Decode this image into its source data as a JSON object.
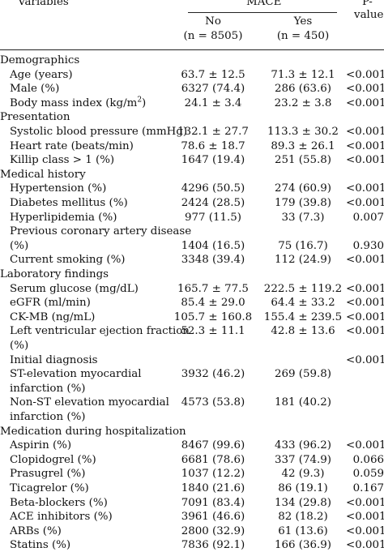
{
  "header": {
    "variables": "Variables",
    "mace": "MACE",
    "p_line1": "P-",
    "p_line2": "value",
    "no_label": "No",
    "no_n": "(n = 8505)",
    "yes_label": "Yes",
    "yes_n": "(n = 450)"
  },
  "rows": [
    {
      "label": "Demographics",
      "section": true
    },
    {
      "label": "Age (years)",
      "no": "63.7 ± 12.5",
      "yes": "71.3 ± 12.1",
      "p": "<0.001"
    },
    {
      "label": "Male (%)",
      "no": "6327 (74.4)",
      "yes": "286 (63.6)",
      "p": "<0.001"
    },
    {
      "label": "Body mass index (kg/m",
      "label_sup": "2",
      "label_tail": ")",
      "no": "24.1 ± 3.4",
      "yes": "23.2 ± 3.8",
      "p": "<0.001"
    },
    {
      "label": "Presentation",
      "section": true
    },
    {
      "label": "Systolic blood pressure (mmHg)",
      "no": "132.1 ± 27.7",
      "yes": "113.3 ± 30.2",
      "p": "<0.001"
    },
    {
      "label": "Heart rate (beats/min)",
      "no": "78.6 ± 18.7",
      "yes": "89.3 ± 26.1",
      "p": "<0.001"
    },
    {
      "label": "Killip class > 1 (%)",
      "no": "1647 (19.4)",
      "yes": "251 (55.8)",
      "p": "<0.001"
    },
    {
      "label": "Medical history",
      "section": true
    },
    {
      "label": "Hypertension (%)",
      "no": "4296 (50.5)",
      "yes": "274 (60.9)",
      "p": "<0.001"
    },
    {
      "label": "Diabetes mellitus (%)",
      "no": "2424 (28.5)",
      "yes": "179 (39.8)",
      "p": "<0.001"
    },
    {
      "label": "Hyperlipidemia (%)",
      "no": "977 (11.5)",
      "yes": "33 (7.3)",
      "p": "0.007"
    },
    {
      "label": "Previous coronary artery disease",
      "no": "",
      "yes": "",
      "p": ""
    },
    {
      "label": "(%)",
      "no": "1404 (16.5)",
      "yes": "75 (16.7)",
      "p": "0.930"
    },
    {
      "label": "Current smoking (%)",
      "no": "3348 (39.4)",
      "yes": "112 (24.9)",
      "p": "<0.001"
    },
    {
      "label": "Laboratory findings",
      "section": true
    },
    {
      "label": "Serum glucose (mg/dL)",
      "no": "165.7 ± 77.5",
      "yes": "222.5 ± 119.2",
      "p": "<0.001"
    },
    {
      "label": "eGFR (ml/min)",
      "no": "85.4 ± 29.0",
      "yes": "64.4 ± 33.2",
      "p": "<0.001"
    },
    {
      "label": "CK-MB (ng/mL)",
      "no": "105.7 ± 160.8",
      "yes": "155.4 ± 239.5",
      "p": "<0.001"
    },
    {
      "label": "Left ventricular ejection fraction",
      "no": "52.3 ± 11.1",
      "yes": "42.8 ± 13.6",
      "p": "<0.001"
    },
    {
      "label": "(%)",
      "no": "",
      "yes": "",
      "p": ""
    },
    {
      "label": "Initial diagnosis",
      "no": "",
      "yes": "",
      "p": "<0.001"
    },
    {
      "label": "ST-elevation myocardial",
      "no": "3932 (46.2)",
      "yes": "269 (59.8)",
      "p": ""
    },
    {
      "label": "infarction (%)",
      "no": "",
      "yes": "",
      "p": ""
    },
    {
      "label": "Non-ST elevation myocardial",
      "no": "4573 (53.8)",
      "yes": "181 (40.2)",
      "p": ""
    },
    {
      "label": "infarction (%)",
      "no": "",
      "yes": "",
      "p": ""
    },
    {
      "label": "Medication during hospitalization",
      "section": true
    },
    {
      "label": "Aspirin (%)",
      "no": "8467 (99.6)",
      "yes": "433 (96.2)",
      "p": "<0.001"
    },
    {
      "label": "Clopidogrel (%)",
      "no": "6681 (78.6)",
      "yes": "337 (74.9)",
      "p": "0.066"
    },
    {
      "label": "Prasugrel (%)",
      "no": "1037 (12.2)",
      "yes": "42 (9.3)",
      "p": "0.059"
    },
    {
      "label": "Ticagrelor (%)",
      "no": "1840 (21.6)",
      "yes": "86 (19.1)",
      "p": "0.167"
    },
    {
      "label": "Beta-blockers (%)",
      "no": "7091 (83.4)",
      "yes": "134 (29.8)",
      "p": "<0.001"
    },
    {
      "label": "ACE inhibitors (%)",
      "no": "3961 (46.6)",
      "yes": "82 (18.2)",
      "p": "<0.001"
    },
    {
      "label": "ARBs (%)",
      "no": "2800 (32.9)",
      "yes": "61 (13.6)",
      "p": "<0.001"
    },
    {
      "label": "Statins (%)",
      "no": "7836 (92.1)",
      "yes": "166 (36.9)",
      "p": "<0.001"
    }
  ]
}
